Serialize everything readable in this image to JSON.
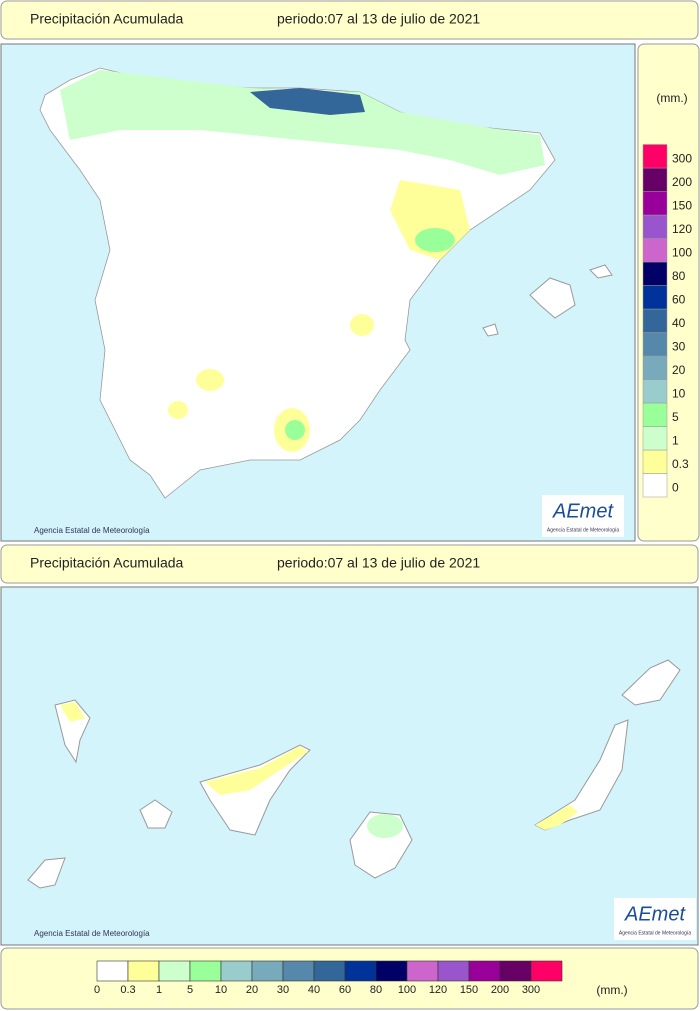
{
  "headers": [
    {
      "title": "Precipitación Acumulada",
      "period": "periodo:07 al 13 de julio de 2021"
    },
    {
      "title": "Precipitación Acumulada",
      "period": "periodo:07 al 13 de julio de 2021"
    }
  ],
  "credits": [
    "Agencia Estatal de Meteorología",
    "Agencia Estatal de Meteorología"
  ],
  "logo": {
    "name": "AEmet",
    "subtitle": "Agencia Estatal de Meteorología"
  },
  "legend": {
    "unit": "(mm.)",
    "values": [
      0,
      0.3,
      1,
      5,
      10,
      20,
      30,
      40,
      60,
      80,
      100,
      120,
      150,
      200,
      300
    ],
    "colors": [
      "#ffffff",
      "#ffff99",
      "#ccffcc",
      "#99ff99",
      "#99cccc",
      "#77aabb",
      "#5588aa",
      "#336699",
      "#003399",
      "#000066",
      "#cc66cc",
      "#9955cc",
      "#990099",
      "#660066",
      "#ff0066"
    ]
  }
}
